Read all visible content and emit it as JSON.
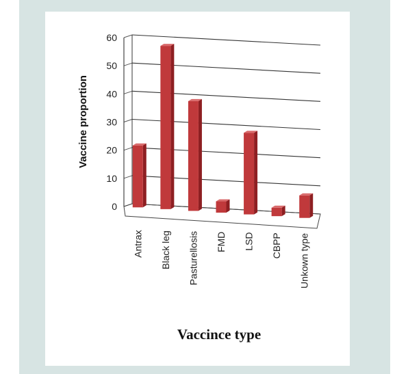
{
  "chart_data": {
    "type": "bar",
    "categories": [
      "Antrax",
      "Black leg",
      "Pasturellosis",
      "FMD",
      "LSD",
      "CBPP",
      "Unkown type"
    ],
    "values": [
      22,
      58,
      39,
      4,
      29,
      3,
      8
    ],
    "title": "",
    "xlabel": "Vaccince type",
    "ylabel": "Vaccine proportion",
    "ylim": [
      0,
      60
    ],
    "yticks": [
      0,
      10,
      20,
      30,
      40,
      50,
      60
    ],
    "grid": true,
    "legend": "none",
    "bar_color": "#c0393b",
    "bar_side_color": "#8e1f22",
    "bar_top_color": "#d96a6b"
  }
}
